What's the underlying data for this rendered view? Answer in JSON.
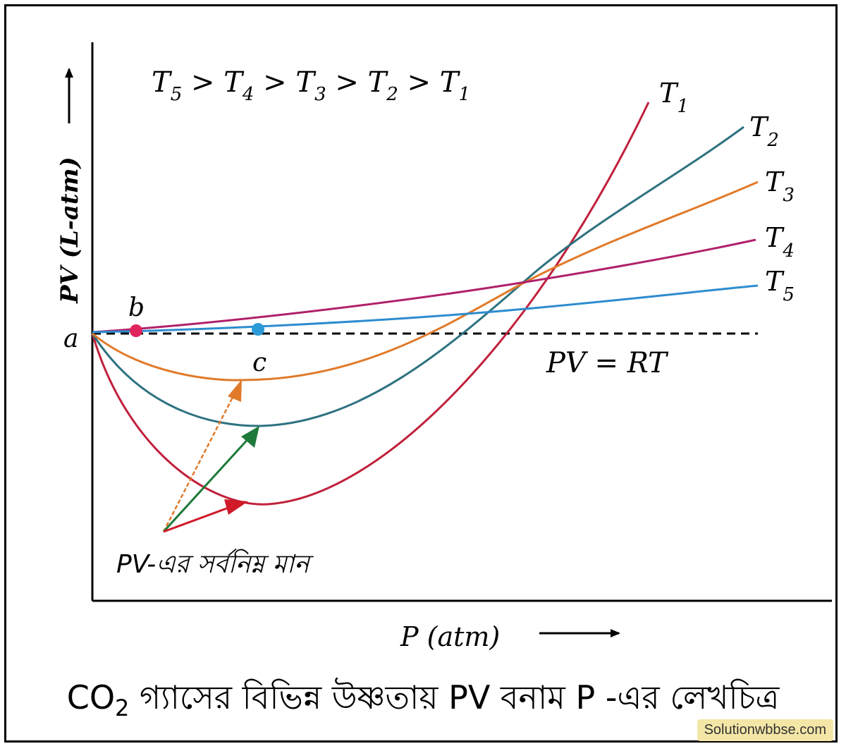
{
  "chart_data": {
    "type": "line",
    "title": "CO2 গ্যাসের বিভিন্ন উষ্ণতায় PV বনাম P -এর লেখচিত্র",
    "xlabel": "P (atm)",
    "ylabel": "PV (L-atm)",
    "order_text": "T5 > T4 > T3 > T2 > T1",
    "ideal_line_label": "PV = RT",
    "point_labels": {
      "a": "a",
      "b": "b",
      "c": "c"
    },
    "minima_label": "PV-এর সর্বনিম্ন মান",
    "series": [
      {
        "name": "T1",
        "color": "#c0203a"
      },
      {
        "name": "T2",
        "color": "#2e7280"
      },
      {
        "name": "T3",
        "color": "#e07a2a"
      },
      {
        "name": "T4",
        "color": "#b0206a"
      },
      {
        "name": "T5",
        "color": "#2d8ccf"
      }
    ],
    "markers": [
      {
        "label": "b",
        "color": "#e0245e"
      },
      {
        "label": "c",
        "color": "#2d9ad8"
      }
    ],
    "arrow_colors": {
      "orange": "#e07a2a",
      "green": "#1e7a3a",
      "red": "#d01a2a"
    },
    "ideal_line_color": "#000000"
  },
  "caption": {
    "prefix": "CO",
    "subscript": "2",
    "text": "গ্যাসের বিভিন্ন উষ্ণতায় PV বনাম P -এর লেখচিত্র"
  },
  "watermark": "Solutionwbbse.com"
}
